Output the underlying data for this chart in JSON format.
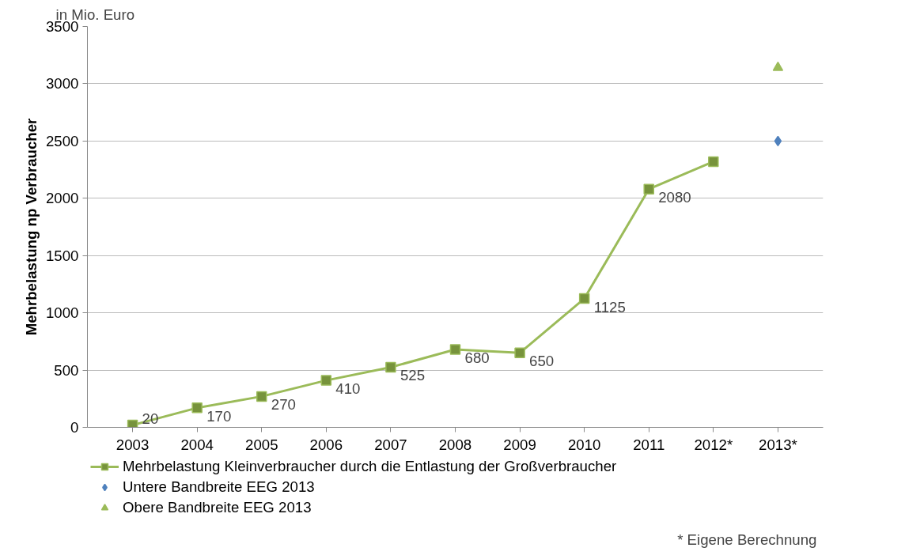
{
  "chart_data": {
    "type": "line",
    "ylabel": "Mehrbelastung np Verbraucher",
    "annotations": [
      "in Mio. Euro",
      "* Eigene Berechnung"
    ],
    "categories": [
      "2003",
      "2004",
      "2005",
      "2006",
      "2007",
      "2008",
      "2009",
      "2010",
      "2011",
      "2012*",
      "2013*"
    ],
    "series": [
      {
        "name": "Mehrbelastung Kleinverbraucher durch die Entlastung der Großverbraucher",
        "color": "#9bbb59",
        "marker": "square",
        "values": [
          20,
          170,
          270,
          410,
          525,
          680,
          650,
          1125,
          2080,
          2320,
          null
        ],
        "value_labels": [
          "20",
          "170",
          "270",
          "410",
          "525",
          "680",
          "650",
          "1125",
          "2080",
          null,
          null
        ]
      },
      {
        "name": "Untere Bandbreite EEG 2013",
        "type": "scatter",
        "color": "#4f81bd",
        "marker": "diamond",
        "values": [
          null,
          null,
          null,
          null,
          null,
          null,
          null,
          null,
          null,
          null,
          2500
        ]
      },
      {
        "name": "Obere Bandbreite EEG 2013",
        "type": "scatter",
        "color": "#9bbb59",
        "marker": "triangle",
        "values": [
          null,
          null,
          null,
          null,
          null,
          null,
          null,
          null,
          null,
          null,
          3140
        ]
      }
    ],
    "ylim": [
      0,
      3500
    ],
    "yticks": [
      0,
      500,
      1000,
      1500,
      2000,
      2500,
      3000,
      3500
    ],
    "grid": "y",
    "legend": "bottom"
  }
}
